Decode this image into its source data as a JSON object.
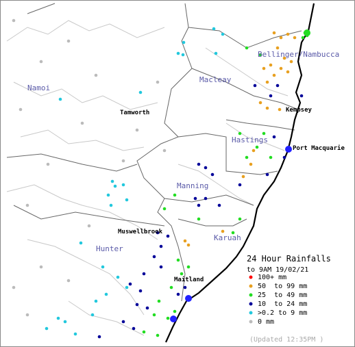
{
  "map": {
    "regions": [
      "Namoi",
      "Macleay",
      "Bellinger/Nambucca",
      "Hastings",
      "Manning",
      "Karuah",
      "Hunter"
    ],
    "towns": [
      "Tamworth",
      "Kempsey",
      "Port Macquarie",
      "Muswellbrook",
      "Maitland"
    ],
    "legend": {
      "title": "24 Hour Rainfalls",
      "subtitle": "to 9AM 19/02/21",
      "items": [
        {
          "label": "100+ mm",
          "color": "#ff0000"
        },
        {
          "label": "50  to 99 mm",
          "color": "#e8a020"
        },
        {
          "label": "25  to 49 mm",
          "color": "#22dd22"
        },
        {
          "label": "10  to 24 mm",
          "color": "#000099"
        },
        {
          "label": ">0.2 to 9 mm",
          "color": "#22c8dd"
        },
        {
          "label": "0 mm",
          "color": "#bbbbbb"
        }
      ],
      "updated": "(Updated 12:35PM )"
    }
  }
}
